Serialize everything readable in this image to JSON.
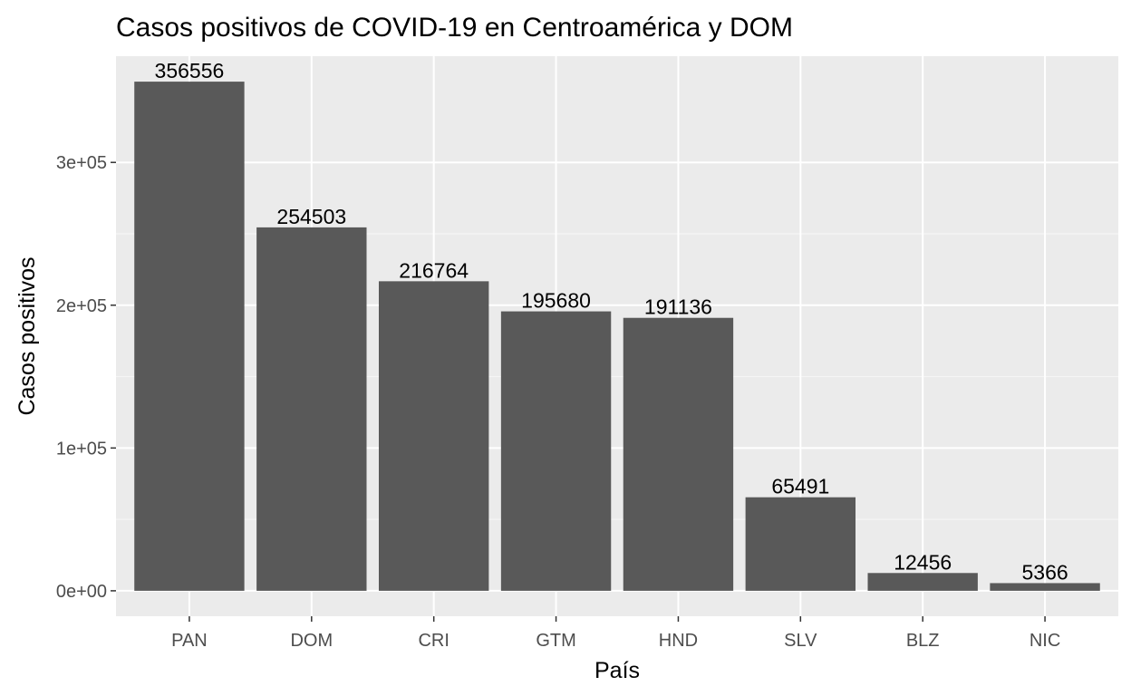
{
  "chart_data": {
    "type": "bar",
    "title": "Casos positivos de COVID-19 en Centroamérica y DOM",
    "xlabel": "País",
    "ylabel": "Casos positivos",
    "categories": [
      "PAN",
      "DOM",
      "CRI",
      "GTM",
      "HND",
      "SLV",
      "BLZ",
      "NIC"
    ],
    "values": [
      356556,
      254503,
      216764,
      195680,
      191136,
      65491,
      12456,
      5366
    ],
    "data_labels": [
      "356556",
      "254503",
      "216764",
      "195680",
      "191136",
      "65491",
      "12456",
      "5366"
    ],
    "ylim": [
      -17828,
      374384
    ],
    "y_ticks": [
      0,
      100000,
      200000,
      300000
    ],
    "y_tick_labels": [
      "0e+00",
      "1e+05",
      "2e+05",
      "3e+05"
    ],
    "grid": true,
    "legend": "none",
    "colors": {
      "bar": "#595959",
      "panel_background": "#ebebeb",
      "grid_major": "#ffffff",
      "grid_minor": "#f5f5f5",
      "tick_mark": "#333333"
    }
  }
}
